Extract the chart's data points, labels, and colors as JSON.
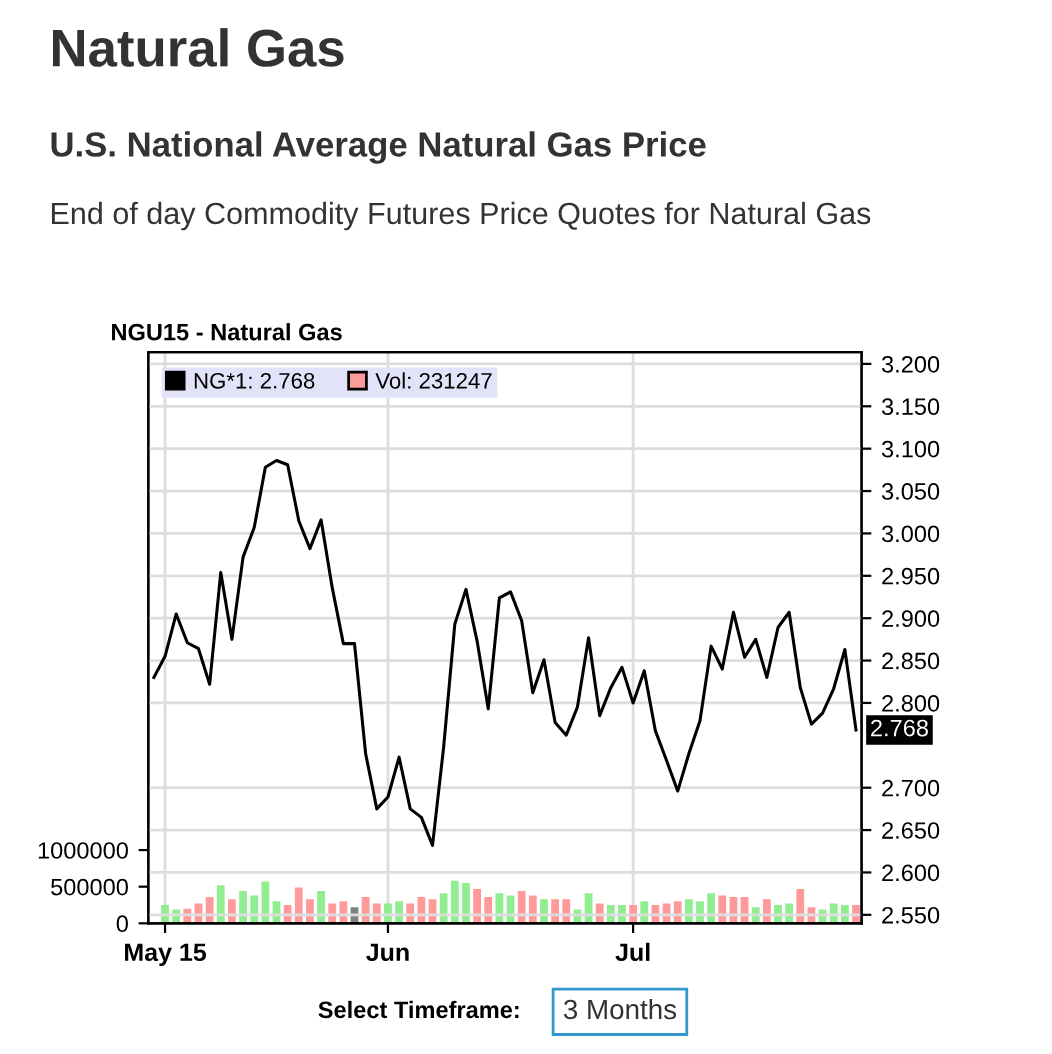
{
  "chart_data": {
    "type": "line",
    "title": "Natural Gas",
    "subtitle": "U.S. National Average Natural Gas Price",
    "annotations": [
      "End of day Commodity Futures Price Quotes for Natural Gas",
      "NGU15 - Natural Gas",
      "Select Timeframe:",
      "3 Months",
      "2.768"
    ],
    "categories": [
      null,
      "May 15",
      null,
      null,
      null,
      null,
      null,
      null,
      null,
      null,
      null,
      null,
      null,
      null,
      null,
      null,
      null,
      null,
      null,
      null,
      null,
      "Jun",
      null,
      null,
      null,
      null,
      null,
      null,
      null,
      null,
      null,
      null,
      null,
      null,
      null,
      null,
      null,
      null,
      null,
      null,
      null,
      null,
      null,
      "Jul",
      null,
      null,
      null,
      null,
      null,
      null,
      null,
      null,
      null,
      null,
      null,
      null,
      null,
      null,
      null,
      null,
      null,
      null,
      null,
      null
    ],
    "series": [
      {
        "name": "NG*1: 2.768",
        "axis": "y2",
        "color": "#000000",
        "values": [
          2.83,
          2.855,
          2.905,
          2.871,
          2.864,
          2.822,
          2.954,
          2.875,
          2.972,
          3.007,
          3.078,
          3.086,
          3.081,
          3.015,
          2.982,
          3.016,
          2.936,
          2.87,
          2.87,
          2.74,
          2.675,
          2.689,
          2.736,
          2.675,
          2.665,
          2.632,
          2.748,
          2.893,
          2.934,
          2.873,
          2.793,
          2.924,
          2.931,
          2.897,
          2.812,
          2.851,
          2.777,
          2.762,
          2.795,
          2.877,
          2.785,
          2.818,
          2.842,
          2.8,
          2.838,
          2.767,
          2.732,
          2.696,
          2.74,
          2.779,
          2.867,
          2.84,
          2.907,
          2.854,
          2.875,
          2.83,
          2.889,
          2.907,
          2.818,
          2.775,
          2.788,
          2.817,
          2.863,
          2.768
        ]
      },
      {
        "name": "Vol: 231247",
        "type": "bar",
        "axis": "y",
        "color": "#ff9a9a",
        "values": [
          null,
          250000,
          190000,
          200000,
          270000,
          360000,
          520000,
          330000,
          440000,
          380000,
          570000,
          300000,
          250000,
          490000,
          330000,
          440000,
          270000,
          300000,
          220000,
          360000,
          270000,
          270000,
          300000,
          270000,
          360000,
          330000,
          410000,
          580000,
          550000,
          470000,
          360000,
          410000,
          380000,
          440000,
          380000,
          330000,
          330000,
          330000,
          190000,
          410000,
          270000,
          250000,
          250000,
          250000,
          300000,
          250000,
          270000,
          300000,
          330000,
          300000,
          410000,
          380000,
          360000,
          360000,
          220000,
          330000,
          250000,
          270000,
          470000,
          220000,
          190000,
          270000,
          250000,
          250000
        ],
        "colors": [
          null,
          "#90ee90",
          "#90ee90",
          "#ff9a9a",
          "#ff9a9a",
          "#ff9a9a",
          "#90ee90",
          "#ff9a9a",
          "#90ee90",
          "#90ee90",
          "#90ee90",
          "#90ee90",
          "#ff9a9a",
          "#ff9a9a",
          "#ff9a9a",
          "#90ee90",
          "#ff9a9a",
          "#ff9a9a",
          "#808080",
          "#ff9a9a",
          "#ff9a9a",
          "#90ee90",
          "#90ee90",
          "#ff9a9a",
          "#ff9a9a",
          "#ff9a9a",
          "#90ee90",
          "#90ee90",
          "#90ee90",
          "#ff9a9a",
          "#ff9a9a",
          "#90ee90",
          "#90ee90",
          "#ff9a9a",
          "#ff9a9a",
          "#90ee90",
          "#ff9a9a",
          "#ff9a9a",
          "#90ee90",
          "#90ee90",
          "#ff9a9a",
          "#90ee90",
          "#90ee90",
          "#ff9a9a",
          "#90ee90",
          "#ff9a9a",
          "#ff9a9a",
          "#ff9a9a",
          "#90ee90",
          "#90ee90",
          "#90ee90",
          "#ff9a9a",
          "#ff9a9a",
          "#ff9a9a",
          "#90ee90",
          "#ff9a9a",
          "#90ee90",
          "#90ee90",
          "#ff9a9a",
          "#ff9a9a",
          "#90ee90",
          "#90ee90",
          "#90ee90",
          "#ff9a9a"
        ]
      }
    ],
    "ylim": [
      0,
      7800000
    ],
    "yticks": [
      0,
      500000,
      1000000
    ],
    "y2lim": [
      2.54,
      3.214
    ],
    "y2ticks": [
      {
        "value": 2.55,
        "label": "2.550"
      },
      {
        "value": 2.6,
        "label": "2.600"
      },
      {
        "value": 2.65,
        "label": "2.650"
      },
      {
        "value": 2.7,
        "label": "2.700"
      },
      {
        "value": 2.8,
        "label": "2.800"
      },
      {
        "value": 2.85,
        "label": "2.850"
      },
      {
        "value": 2.9,
        "label": "2.900"
      },
      {
        "value": 2.95,
        "label": "2.950"
      },
      {
        "value": 3.0,
        "label": "3.000"
      },
      {
        "value": 3.05,
        "label": "3.050"
      },
      {
        "value": 3.1,
        "label": "3.100"
      },
      {
        "value": 3.15,
        "label": "3.150"
      },
      {
        "value": 3.2,
        "label": "3.200"
      }
    ],
    "grid": true,
    "legend": "top",
    "marker": "none",
    "line_style": "solid"
  }
}
